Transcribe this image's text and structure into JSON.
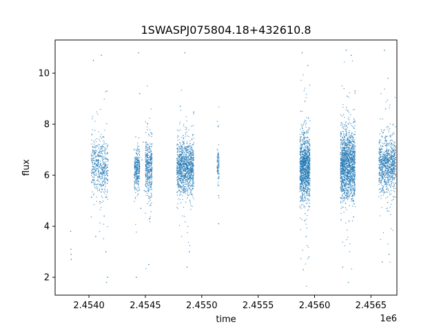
{
  "chart_data": {
    "type": "scatter",
    "title": "1SWASPJ075804.18+432610.8",
    "xlabel": "time",
    "ylabel": "flux",
    "x_offset_label": "1e6",
    "xlim": [
      2453700,
      2456730
    ],
    "ylim": [
      1.3,
      11.3
    ],
    "x_ticks": [
      2454000,
      2454500,
      2455000,
      2455500,
      2456000,
      2456500
    ],
    "x_tick_labels": [
      "2.4540",
      "2.4545",
      "2.4550",
      "2.4555",
      "2.4560",
      "2.4565"
    ],
    "y_ticks": [
      2,
      4,
      6,
      8,
      10
    ],
    "y_tick_labels": [
      "2",
      "4",
      "6",
      "8",
      "10"
    ],
    "grid": false,
    "point_color": "#1f77b4",
    "series": [
      {
        "values": [
          [
            2453838,
            3.8
          ],
          [
            2453840,
            3.1
          ],
          [
            2453842,
            2.9
          ],
          [
            2453843,
            2.7
          ],
          [
            2454030,
            6.5
          ],
          [
            2454045,
            7.1
          ],
          [
            2454060,
            6.2
          ],
          [
            2454075,
            5.8
          ],
          [
            2454090,
            6.9
          ],
          [
            2454105,
            6.4
          ],
          [
            2454120,
            5.6
          ],
          [
            2454135,
            4.4
          ],
          [
            2454150,
            3.0
          ],
          [
            2454165,
            2.0
          ],
          [
            2454040,
            10.5
          ],
          [
            2454110,
            10.7
          ],
          [
            2454155,
            1.8
          ],
          [
            2454160,
            9.3
          ],
          [
            2454060,
            3.6
          ],
          [
            2454410,
            6.3
          ],
          [
            2454430,
            6.8
          ],
          [
            2454440,
            5.9
          ],
          [
            2454450,
            9.2
          ],
          [
            2454460,
            4.7
          ],
          [
            2454470,
            6.6
          ],
          [
            2454480,
            7.3
          ],
          [
            2454490,
            5.4
          ],
          [
            2454440,
            10.8
          ],
          [
            2454420,
            2.0
          ],
          [
            2454520,
            6.1
          ],
          [
            2454530,
            7.6
          ],
          [
            2454540,
            4.3
          ],
          [
            2454530,
            2.5
          ],
          [
            2454800,
            6.0
          ],
          [
            2454820,
            6.7
          ],
          [
            2454840,
            5.5
          ],
          [
            2454860,
            7.8
          ],
          [
            2454880,
            5.2
          ],
          [
            2454900,
            6.4
          ],
          [
            2454850,
            10.8
          ],
          [
            2454870,
            2.4
          ],
          [
            2454810,
            8.7
          ],
          [
            2454890,
            3.0
          ],
          [
            2455140,
            6.4
          ],
          [
            2455145,
            7.9
          ],
          [
            2455148,
            5.2
          ],
          [
            2455150,
            4.1
          ],
          [
            2455880,
            6.2
          ],
          [
            2455895,
            7.4
          ],
          [
            2455905,
            4.8
          ],
          [
            2455915,
            8.9
          ],
          [
            2455925,
            3.6
          ],
          [
            2455935,
            6.8
          ],
          [
            2455945,
            5.5
          ],
          [
            2455890,
            10.8
          ],
          [
            2455900,
            2.3
          ],
          [
            2455940,
            10.3
          ],
          [
            2455950,
            2.8
          ],
          [
            2456240,
            6.5
          ],
          [
            2456260,
            7.9
          ],
          [
            2456275,
            4.9
          ],
          [
            2456290,
            9.1
          ],
          [
            2456305,
            4.2
          ],
          [
            2456320,
            6.8
          ],
          [
            2456335,
            5.6
          ],
          [
            2456350,
            8.2
          ],
          [
            2456280,
            10.9
          ],
          [
            2456300,
            1.8
          ],
          [
            2456325,
            10.7
          ],
          [
            2456250,
            2.4
          ],
          [
            2456580,
            6.4
          ],
          [
            2456600,
            7.5
          ],
          [
            2456615,
            5.3
          ],
          [
            2456630,
            8.6
          ],
          [
            2456645,
            4.6
          ],
          [
            2456660,
            7.0
          ],
          [
            2456675,
            5.9
          ],
          [
            2456690,
            6.6
          ],
          [
            2456620,
            10.9
          ],
          [
            2456600,
            2.6
          ],
          [
            2456650,
            9.8
          ],
          [
            2456660,
            2.9
          ]
        ]
      }
    ],
    "dense_bands": [
      {
        "start": 2454020,
        "end": 2454170,
        "center": 6.3,
        "spread": 1.0,
        "count": 500
      },
      {
        "start": 2454400,
        "end": 2454450,
        "center": 6.2,
        "spread": 0.7,
        "count": 300
      },
      {
        "start": 2454500,
        "end": 2454560,
        "center": 6.3,
        "spread": 1.0,
        "count": 420
      },
      {
        "start": 2454780,
        "end": 2454930,
        "center": 6.3,
        "spread": 0.9,
        "count": 1100
      },
      {
        "start": 2455135,
        "end": 2455155,
        "center": 6.3,
        "spread": 0.7,
        "count": 90
      },
      {
        "start": 2455870,
        "end": 2455960,
        "center": 6.3,
        "spread": 1.1,
        "count": 1200
      },
      {
        "start": 2456230,
        "end": 2456360,
        "center": 6.4,
        "spread": 1.2,
        "count": 1500
      },
      {
        "start": 2456570,
        "end": 2456720,
        "center": 6.4,
        "spread": 0.9,
        "count": 900
      }
    ]
  }
}
